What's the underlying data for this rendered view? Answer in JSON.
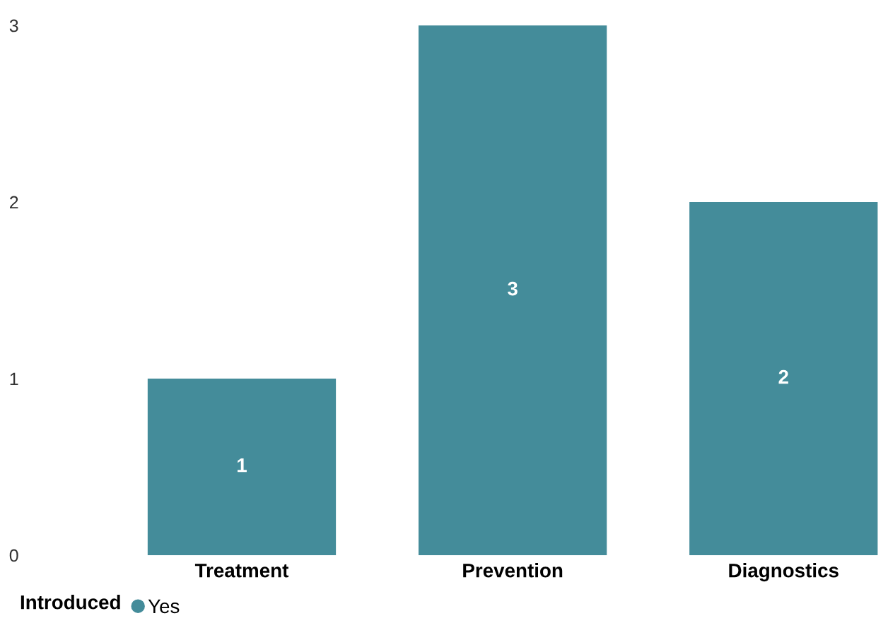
{
  "chart_data": {
    "type": "bar",
    "categories": [
      "Treatment",
      "Prevention",
      "Diagnostics"
    ],
    "series": [
      {
        "name": "Yes",
        "color": "#448c9a",
        "values": [
          1,
          3,
          2
        ]
      }
    ],
    "ylim": [
      0,
      3
    ],
    "yticks": [
      0,
      1,
      2,
      3
    ],
    "data_labels": true,
    "grid": false,
    "legend": "bottom left",
    "legend_title": "Introduced"
  }
}
